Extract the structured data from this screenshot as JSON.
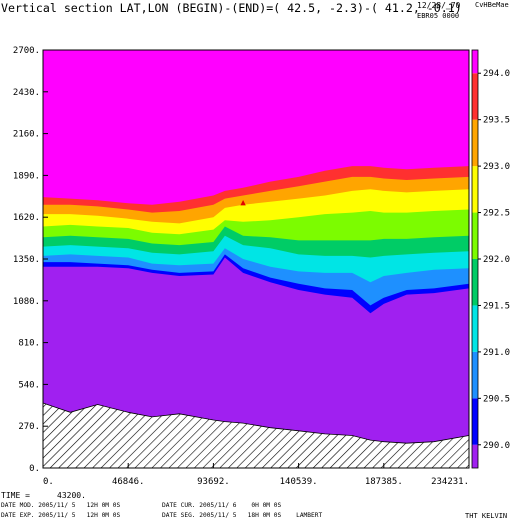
{
  "header": {
    "title": "Vertical section LAT,LON (BEGIN)-(END)=( 42.5, -2.3)-( 41.2, -0.1)",
    "date": "12/28/‗70",
    "user": "CvHBeMae",
    "run": "EBR05 0000"
  },
  "footer": {
    "time_label": "TIME =",
    "time_value": "43200.",
    "line1_left": "DATE MOD. 2005/11/ 5   12H 0M 0S",
    "line1_right": "DATE CUR. 2005/11/ 6    0H 0M 0S",
    "line2_left": "DATE EXP. 2005/11/ 5   12H 0M 0S",
    "line2_right": "DATE SEG. 2005/11/ 5   18H 0M 0S    LAMBERT",
    "variable": "THT KELVIN"
  },
  "chart_data": {
    "type": "heatmap",
    "title": "Vertical section LAT,LON (BEGIN)-(END)=( 42.5, -2.3)-( 41.2, -0.1)",
    "variable": "THT KELVIN",
    "xlim": [
      0,
      234231
    ],
    "ylim": [
      0,
      2700
    ],
    "x_ticks": [
      "0.",
      "46846.",
      "93692.",
      "140539.",
      "187385.",
      "234231."
    ],
    "y_ticks": [
      "0.",
      "270.",
      "540.",
      "810.",
      "1080.",
      "1350.",
      "1620.",
      "1890.",
      "2160.",
      "2430.",
      "2700."
    ],
    "x_tick_values": [
      0,
      46846,
      93692,
      140539,
      187385,
      234231
    ],
    "y_tick_values": [
      0,
      270,
      540,
      810,
      1080,
      1350,
      1620,
      1890,
      2160,
      2430,
      2700
    ],
    "colorbar": {
      "ticks": [
        "290.0",
        "290.5",
        "291.0",
        "291.5",
        "292.0",
        "292.5",
        "293.0",
        "293.5",
        "294.0"
      ],
      "tick_values": [
        290.0,
        290.5,
        291.0,
        291.5,
        292.0,
        292.5,
        293.0,
        293.5,
        294.0
      ],
      "range": [
        289.75,
        294.25
      ],
      "colors": [
        "#a020f0",
        "#0000ff",
        "#1e90ff",
        "#00e5e5",
        "#00cc66",
        "#7cfc00",
        "#ffff00",
        "#ffa500",
        "#ff3030",
        "#ff00ff"
      ]
    },
    "profile_x": [
      0,
      15000,
      30000,
      46846,
      60000,
      75000,
      93692,
      100000,
      110000,
      125000,
      140539,
      155000,
      170000,
      180000,
      187385,
      200000,
      215000,
      234231
    ],
    "terrain": [
      420,
      360,
      410,
      360,
      330,
      350,
      310,
      300,
      290,
      260,
      240,
      220,
      210,
      180,
      170,
      160,
      170,
      210
    ],
    "contour_levels": [
      290.0,
      290.5,
      291.0,
      291.5,
      292.0,
      292.5,
      293.0,
      293.5,
      294.0
    ],
    "contour_heights": [
      [
        1300,
        1300,
        1300,
        1290,
        1260,
        1240,
        1250,
        1360,
        1260,
        1200,
        1150,
        1120,
        1100,
        1000,
        1060,
        1120,
        1130,
        1160
      ],
      [
        1330,
        1330,
        1320,
        1310,
        1280,
        1260,
        1270,
        1380,
        1290,
        1230,
        1190,
        1160,
        1150,
        1050,
        1100,
        1150,
        1160,
        1190
      ],
      [
        1370,
        1380,
        1370,
        1360,
        1320,
        1310,
        1320,
        1420,
        1350,
        1300,
        1270,
        1260,
        1260,
        1200,
        1240,
        1260,
        1280,
        1290
      ],
      [
        1430,
        1440,
        1430,
        1420,
        1390,
        1380,
        1400,
        1500,
        1440,
        1420,
        1380,
        1370,
        1370,
        1360,
        1370,
        1380,
        1390,
        1400
      ],
      [
        1490,
        1500,
        1490,
        1480,
        1450,
        1440,
        1460,
        1560,
        1500,
        1490,
        1470,
        1470,
        1470,
        1470,
        1480,
        1480,
        1490,
        1500
      ],
      [
        1560,
        1570,
        1560,
        1550,
        1520,
        1510,
        1540,
        1600,
        1590,
        1600,
        1620,
        1640,
        1650,
        1660,
        1650,
        1650,
        1660,
        1670
      ],
      [
        1640,
        1640,
        1630,
        1610,
        1590,
        1580,
        1620,
        1680,
        1700,
        1720,
        1740,
        1760,
        1790,
        1800,
        1790,
        1780,
        1790,
        1800
      ],
      [
        1700,
        1700,
        1690,
        1670,
        1650,
        1660,
        1700,
        1740,
        1760,
        1790,
        1820,
        1850,
        1880,
        1880,
        1870,
        1860,
        1870,
        1880
      ],
      [
        1750,
        1740,
        1730,
        1710,
        1700,
        1720,
        1760,
        1790,
        1810,
        1850,
        1880,
        1920,
        1950,
        1950,
        1940,
        1930,
        1940,
        1950
      ]
    ],
    "annotation": "▲"
  }
}
